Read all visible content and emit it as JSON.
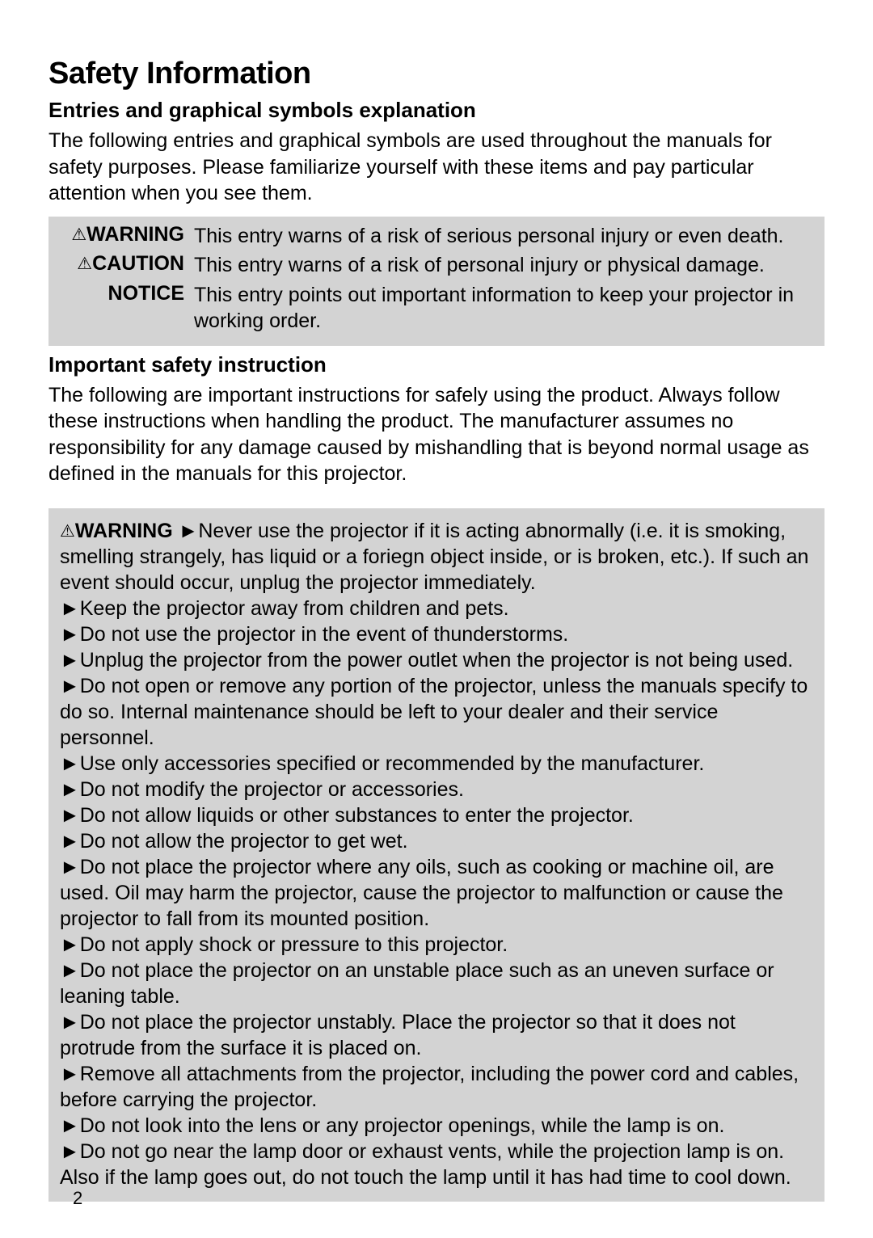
{
  "title": "Safety Information",
  "section1": {
    "heading": "Entries and graphical symbols explanation",
    "intro": "The following entries and graphical symbols are used throughout the manuals for safety purposes.  Please familiarize yourself with these items and pay particular attention when you see them."
  },
  "symbols": {
    "warning": {
      "label": "WARNING",
      "desc": "This entry warns of a risk of serious personal injury or even death."
    },
    "caution": {
      "label": "CAUTION",
      "desc": "This entry warns of a risk of personal injury or physical damage."
    },
    "notice": {
      "label": "NOTICE",
      "desc": "This entry points out important information to keep your projector in working order."
    }
  },
  "section2": {
    "heading": "Important safety instruction",
    "intro": "The following are important instructions for safely using the product. Always follow these instructions when handling the product. The manufacturer assumes no responsibility for any damage caused by mishandling that is beyond normal usage as defined in the manuals for this projector."
  },
  "warning_box": {
    "lead_label": "WARNING",
    "first_item": "Never use the projector if it is acting abnormally (i.e. it is smoking, smelling strangely, has liquid or a foriegn object inside, or is broken, etc.). If such an event should occur, unplug the projector immediately.",
    "items": [
      "Keep the projector away from children and pets.",
      "Do not use the projector in the event of thunderstorms.",
      "Unplug the projector from the power outlet when the projector is not being used.",
      "Do not open or remove any portion of the projector, unless the manuals specify to do so. Internal maintenance should be left to your dealer and their service personnel.",
      "Use only accessories specified or recommended by the manufacturer.",
      "Do not modify the projector or accessories.",
      "Do not allow liquids or other substances to enter the projector.",
      "Do not allow the projector to get wet.",
      "Do not place the projector where any oils, such as cooking or machine oil, are used. Oil may harm the projector, cause the projector to malfunction or cause the projector to fall from its mounted position.",
      "Do not apply shock or pressure to this projector.",
      "Do not place the projector on an unstable place such as an uneven surface or leaning table.",
      "Do not place the projector unstably. Place the projector so that it does not protrude from the surface it is placed on.",
      "Remove all attachments from the projector, including the power cord and cables, before carrying the projector.",
      "Do not look into the lens or any projector openings, while the lamp is on.",
      "Do not go near the lamp door or exhaust vents, while the projection lamp is on. Also if the lamp goes out, do not touch the lamp until it has had time to cool down."
    ]
  },
  "glyphs": {
    "triangle": "⚠",
    "arrow": "►"
  },
  "page_number": "2",
  "colors": {
    "box_bg": "#d3d3d3",
    "text": "#000000",
    "page_bg": "#ffffff"
  }
}
